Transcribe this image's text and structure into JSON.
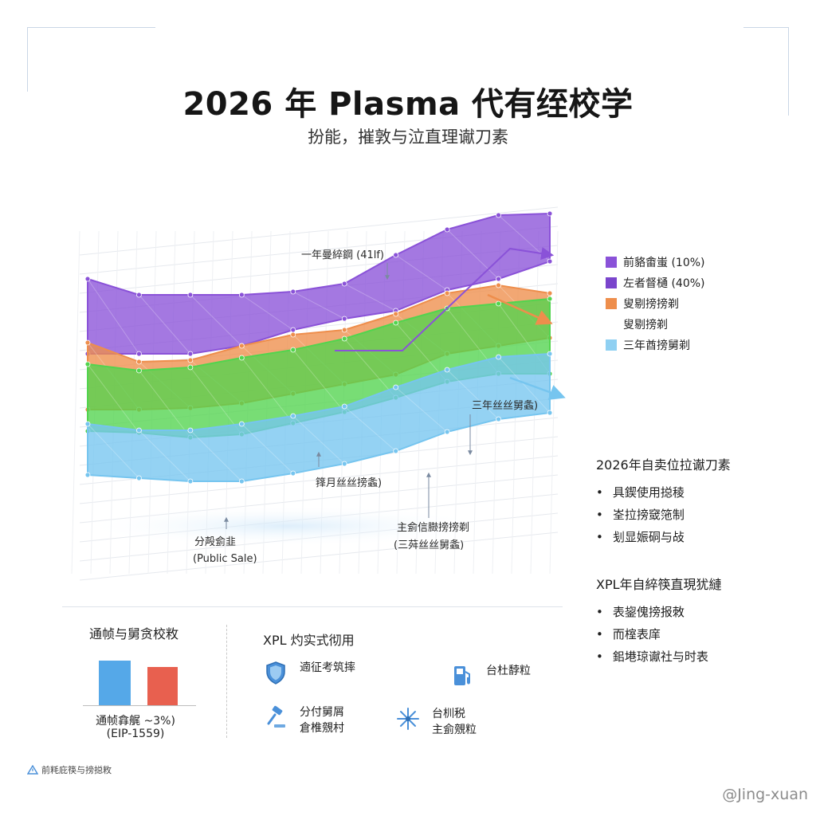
{
  "header": {
    "title": "2026 年 Plasma 代有绖校学",
    "subtitle": "扮能，摧敦与泣直理谳刀素"
  },
  "chart_data": {
    "type": "area",
    "title": "2026 年 Plasma 代有绖校学",
    "x": [
      0,
      1,
      2,
      3,
      4,
      5,
      6,
      7,
      8,
      9
    ],
    "series": [
      {
        "name": "前貉畬蚩 (10%)",
        "color": "#8a52d8",
        "upper": [
          120,
          100,
          100,
          100,
          104,
          114,
          150,
          182,
          200,
          202
        ],
        "lower": [
          70,
          70,
          70,
          80,
          100,
          114,
          124,
          150,
          164,
          186
        ]
      },
      {
        "name": "左者督樋 (40%)",
        "color": "#ee8e4c",
        "upper": [
          110,
          86,
          88,
          106,
          120,
          126,
          146,
          172,
          182,
          172
        ],
        "lower": [
          70,
          70,
          72,
          78,
          90,
          102,
          114,
          140,
          150,
          160
        ]
      },
      {
        "name": "叟剔搒搒剃",
        "color": "#52d44e",
        "upper": [
          118,
          110,
          114,
          126,
          136,
          150,
          170,
          188,
          194,
          200
        ],
        "lower": [
          78,
          76,
          70,
          74,
          88,
          102,
          120,
          140,
          150,
          150
        ]
      },
      {
        "name": "三年酋搒舅剃",
        "color": "#76c5ef",
        "upper": [
          98,
          90,
          90,
          98,
          108,
          120,
          144,
          166,
          182,
          186
        ],
        "lower": [
          78,
          74,
          70,
          70,
          80,
          92,
          108,
          132,
          148,
          156
        ]
      }
    ],
    "annotations": [
      "一年曼綷鋼 (41lf)",
      "三年丝丝舅螽)",
      "箨月丝丝搒螽)",
      "主侴信臌搒搒剃",
      "(三荈丝丝舅螽)",
      "分殸侴韭",
      "(Public Sale)"
    ],
    "legend_extra": "叟剔搒剃",
    "legend_position": "right"
  },
  "legend": {
    "items": [
      {
        "label": "前貉畬蚩 (10%)",
        "color": "#8a52d8"
      },
      {
        "label": "左者督樋 (40%)",
        "color": "#7a45cc"
      },
      {
        "label": "叟剔搒搒剃",
        "color": "#ee8e4c"
      },
      {
        "label": "叟剔搒剃",
        "color": ""
      },
      {
        "label": "三年酋搒舅剃",
        "color": "#8fd0f2"
      }
    ]
  },
  "side": {
    "block1_title": "2026年自卖位拉谳刀素",
    "block1_items": [
      "具鍥使用搃稜",
      "峑拉搒窢筂制",
      "刬显娠硐与敁"
    ],
    "block2_title": "XPL年自綷筷直現犹縺",
    "block2_items": [
      "表鋆傀搒报敇",
      "而榁表庠",
      "鈻塂琼谳社与时表"
    ]
  },
  "burn": {
    "title": "通帧与舅贪校敉",
    "values": [
      100,
      85
    ],
    "colors": [
      "#55a8e8",
      "#e8604f"
    ],
    "caption_line1": "通帧搻艉  ~3%)",
    "caption_line2": "(EIP-1559)"
  },
  "uses": {
    "title": "XPL 灼实式彻用",
    "items": [
      {
        "icon": "shield-icon",
        "line1": "遖征考筑摔",
        "line2": ""
      },
      {
        "icon": "fuel-pump-icon",
        "line1": "台杜馞粒",
        "line2": ""
      },
      {
        "icon": "gavel-icon",
        "line1": "分付舅屑",
        "line2": "倉椎覫村"
      },
      {
        "icon": "network-icon",
        "line1": "台杊税",
        "line2": "主侴覫粒"
      }
    ]
  },
  "footer": {
    "note": "前粍庇筷与搒搃敉",
    "watermark": "@Jing-xuan"
  }
}
